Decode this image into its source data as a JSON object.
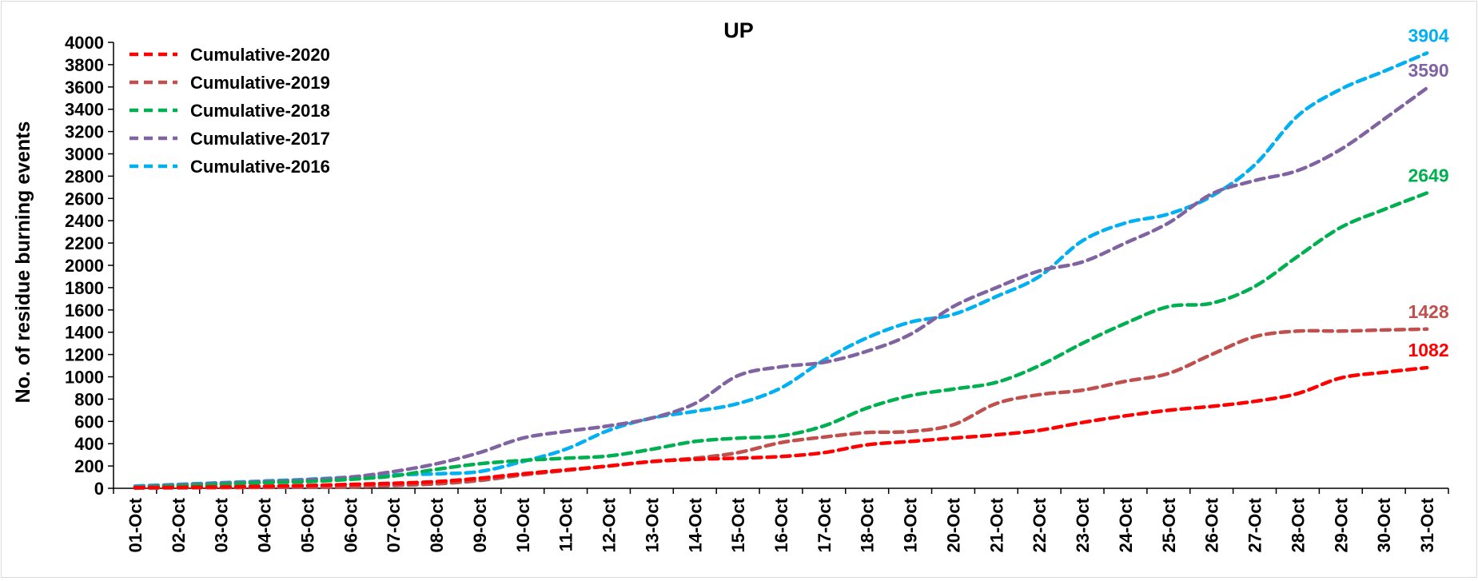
{
  "chart_data": {
    "type": "line",
    "title": "UP",
    "xlabel": "",
    "ylabel": "No. of residue burning events",
    "ylim": [
      0,
      4000
    ],
    "ytick_step": 200,
    "grid": false,
    "legend_position": "top-left",
    "categories": [
      "01-Oct",
      "02-Oct",
      "03-Oct",
      "04-Oct",
      "05-Oct",
      "06-Oct",
      "07-Oct",
      "08-Oct",
      "09-Oct",
      "10-Oct",
      "11-Oct",
      "12-Oct",
      "13-Oct",
      "14-Oct",
      "15-Oct",
      "16-Oct",
      "17-Oct",
      "18-Oct",
      "19-Oct",
      "20-Oct",
      "21-Oct",
      "22-Oct",
      "23-Oct",
      "24-Oct",
      "25-Oct",
      "26-Oct",
      "27-Oct",
      "28-Oct",
      "29-Oct",
      "30-Oct",
      "31-Oct"
    ],
    "series": [
      {
        "name": "Cumulative-2020",
        "color": "#ff0000",
        "end_label": "1082",
        "values": [
          5,
          8,
          12,
          18,
          25,
          35,
          45,
          60,
          90,
          130,
          165,
          200,
          240,
          260,
          270,
          285,
          320,
          390,
          420,
          450,
          480,
          520,
          590,
          650,
          700,
          735,
          780,
          850,
          990,
          1040,
          1082
        ]
      },
      {
        "name": "Cumulative-2019",
        "color": "#c0504d",
        "end_label": "1428",
        "values": [
          2,
          4,
          6,
          8,
          10,
          12,
          25,
          40,
          70,
          120,
          160,
          200,
          240,
          270,
          320,
          410,
          460,
          500,
          510,
          570,
          760,
          840,
          880,
          960,
          1030,
          1200,
          1360,
          1410,
          1410,
          1420,
          1428
        ]
      },
      {
        "name": "Cumulative-2018",
        "color": "#00b050",
        "end_label": "2649",
        "values": [
          8,
          20,
          35,
          50,
          60,
          80,
          110,
          170,
          220,
          250,
          270,
          290,
          350,
          420,
          450,
          470,
          560,
          720,
          830,
          890,
          950,
          1100,
          1300,
          1480,
          1630,
          1660,
          1810,
          2080,
          2340,
          2500,
          2649
        ]
      },
      {
        "name": "Cumulative-2017",
        "color": "#8064a2",
        "end_label": "3590",
        "values": [
          15,
          30,
          45,
          60,
          75,
          100,
          150,
          220,
          320,
          450,
          510,
          560,
          630,
          760,
          1010,
          1090,
          1130,
          1230,
          1380,
          1630,
          1800,
          1950,
          2030,
          2200,
          2380,
          2640,
          2760,
          2850,
          3040,
          3310,
          3590
        ]
      },
      {
        "name": "Cumulative-2016",
        "color": "#00b0f0",
        "end_label": "3904",
        "values": [
          20,
          35,
          50,
          65,
          80,
          100,
          120,
          130,
          150,
          240,
          350,
          520,
          630,
          690,
          760,
          900,
          1150,
          1350,
          1490,
          1560,
          1720,
          1900,
          2220,
          2380,
          2460,
          2620,
          2900,
          3340,
          3580,
          3740,
          3904
        ]
      }
    ]
  }
}
